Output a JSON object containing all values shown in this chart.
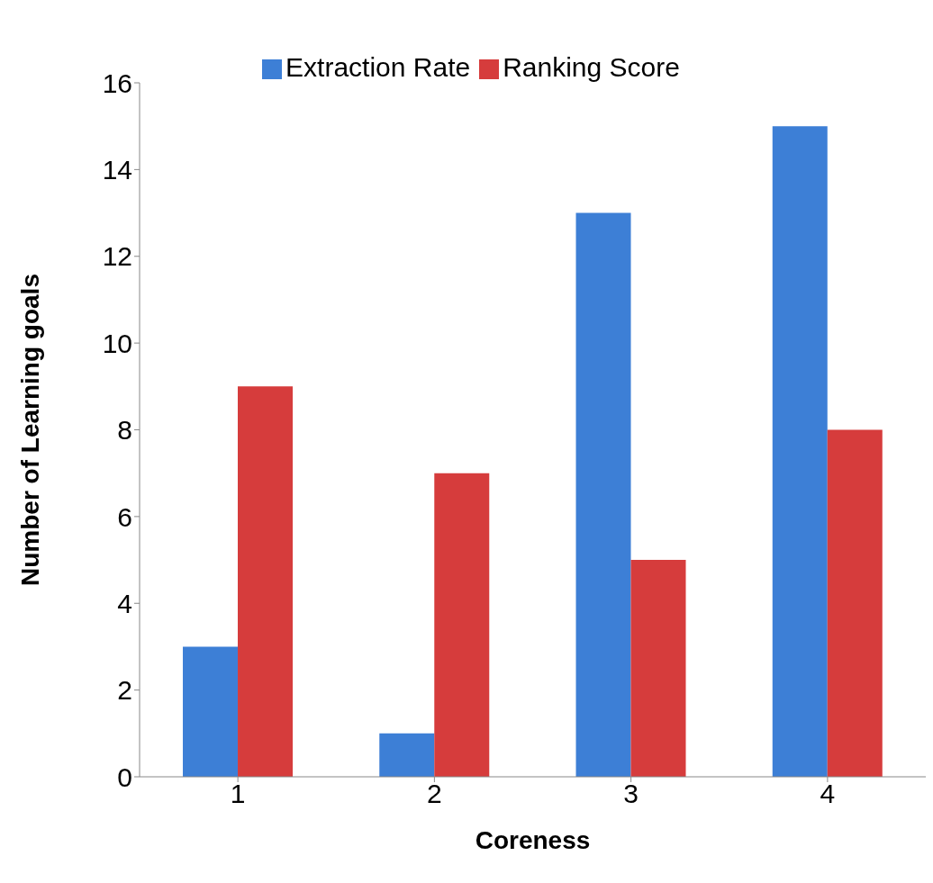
{
  "chart_data": {
    "type": "bar",
    "xlabel": "Coreness",
    "ylabel": "Number of Learning goals",
    "categories": [
      "1",
      "2",
      "3",
      "4"
    ],
    "series": [
      {
        "name": "Extraction Rate",
        "color": "#3d7fd6",
        "values": [
          3,
          1,
          13,
          15
        ]
      },
      {
        "name": "Ranking Score",
        "color": "#d63c3c",
        "values": [
          9,
          7,
          5,
          8
        ]
      }
    ],
    "ylim": [
      0,
      16
    ],
    "yticks": [
      0,
      2,
      4,
      6,
      8,
      10,
      12,
      14,
      16
    ],
    "grid": false,
    "legend": "top"
  }
}
